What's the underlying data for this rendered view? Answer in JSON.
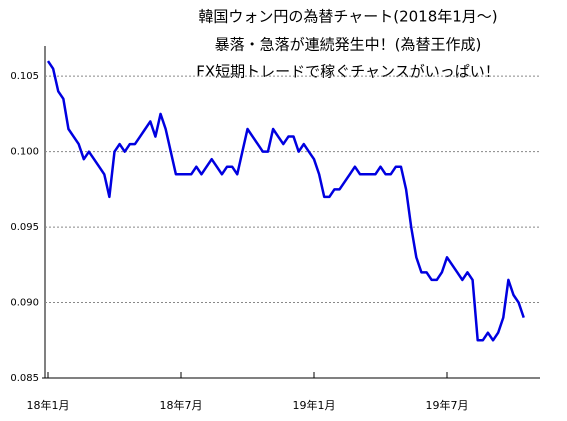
{
  "chart_data": {
    "type": "line",
    "title": [
      "韓国ウォン円の為替チャート(2018年1月～)",
      "暴落・急落が連続発生中！(為替王作成)",
      "FX短期トレードで稼ぐチャンスがいっぱい！"
    ],
    "categories": [
      "18年1月",
      null,
      null,
      null,
      null,
      null,
      null,
      null,
      null,
      null,
      null,
      null,
      null,
      null,
      null,
      null,
      null,
      null,
      null,
      null,
      null,
      null,
      null,
      null,
      null,
      null,
      "18年7月",
      null,
      null,
      null,
      null,
      null,
      null,
      null,
      null,
      null,
      null,
      null,
      null,
      null,
      null,
      null,
      null,
      null,
      null,
      null,
      null,
      null,
      null,
      null,
      null,
      null,
      "19年1月",
      null,
      null,
      null,
      null,
      null,
      null,
      null,
      null,
      null,
      null,
      null,
      null,
      null,
      null,
      null,
      null,
      null,
      null,
      null,
      null,
      null,
      null,
      null,
      null,
      null,
      "19年7月",
      null,
      null,
      null,
      null,
      null,
      null,
      null,
      null,
      null,
      null,
      null,
      null,
      null,
      null,
      null
    ],
    "series": [
      {
        "color": "#0000e0",
        "values": [
          0.106,
          0.1055,
          0.104,
          0.1035,
          0.1015,
          0.101,
          0.1005,
          0.0995,
          0.1,
          0.0995,
          0.099,
          0.0985,
          0.097,
          0.1,
          0.1005,
          0.1,
          0.1005,
          0.1005,
          0.101,
          0.1015,
          0.102,
          0.101,
          0.1025,
          0.1015,
          0.1,
          0.0985,
          0.0985,
          0.0985,
          0.0985,
          0.099,
          0.0985,
          0.099,
          0.0995,
          0.099,
          0.0985,
          0.099,
          0.099,
          0.0985,
          0.1,
          0.1015,
          0.101,
          0.1005,
          0.1,
          0.1,
          0.1015,
          0.101,
          0.1005,
          0.101,
          0.101,
          0.1,
          0.1005,
          0.1,
          0.0995,
          0.0985,
          0.097,
          0.097,
          0.0975,
          0.0975,
          0.098,
          0.0985,
          0.099,
          0.0985,
          0.0985,
          0.0985,
          0.0985,
          0.099,
          0.0985,
          0.0985,
          0.099,
          0.099,
          0.0975,
          0.095,
          0.093,
          0.092,
          0.092,
          0.0915,
          0.0915,
          0.092,
          0.093,
          0.0925,
          0.092,
          0.0915,
          0.092,
          0.0915,
          0.0875,
          0.0875,
          0.088,
          0.0875,
          0.088,
          0.089,
          0.0915,
          0.0905,
          0.09,
          0.089
        ]
      }
    ],
    "ylim": [
      0.085,
      0.107
    ],
    "yticks": [
      0.085,
      {
        "value": 0.09,
        "label": "0.090"
      },
      0.095,
      {
        "value": 0.1,
        "label": "0.100"
      },
      0.105
    ],
    "grid": true
  }
}
